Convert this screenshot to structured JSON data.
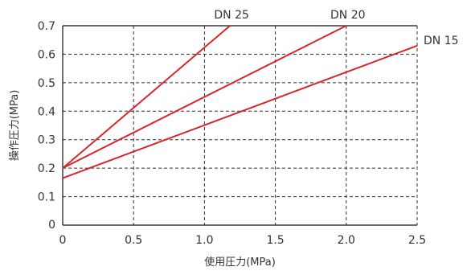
{
  "chart_data": {
    "type": "line",
    "xlabel": "使用圧力(MPa)",
    "ylabel": "操作圧力(MPa)",
    "xlim": [
      0,
      2.5
    ],
    "ylim": [
      0,
      0.7
    ],
    "x_ticks": [
      "0",
      "0.5",
      "1.0",
      "1.5",
      "2.0",
      "2.5"
    ],
    "y_ticks": [
      "0",
      "0.1",
      "0.2",
      "0.3",
      "0.4",
      "0.5",
      "0.6",
      "0.7"
    ],
    "grid": true,
    "line_color": "#d9262b",
    "series": [
      {
        "name": "DN 25",
        "x": [
          0,
          1.18
        ],
        "y": [
          0.2,
          0.7
        ]
      },
      {
        "name": "DN 20",
        "x": [
          0,
          2.0
        ],
        "y": [
          0.2,
          0.7
        ]
      },
      {
        "name": "DN 15",
        "x": [
          0,
          2.5
        ],
        "y": [
          0.165,
          0.63
        ]
      }
    ]
  }
}
